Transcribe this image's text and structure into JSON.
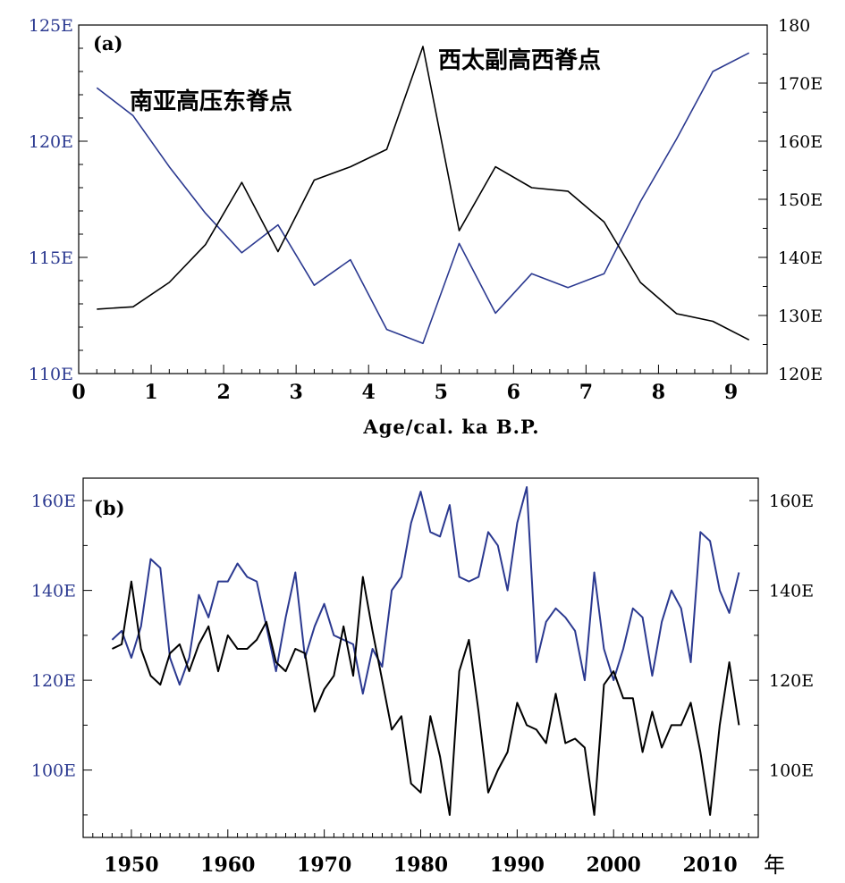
{
  "chart_data": [
    {
      "panel_label": "(a)",
      "type": "line",
      "xlabel": "Age/cal. ka B.P.",
      "xlim": [
        0,
        9.5
      ],
      "x_ticks": [
        "0",
        "1",
        "2",
        "3",
        "4",
        "5",
        "6",
        "7",
        "8",
        "9"
      ],
      "y_left_lim": [
        110,
        125
      ],
      "y_left_ticks": [
        "110E",
        "115E",
        "120E",
        "125E"
      ],
      "y_right_lim": [
        120,
        180
      ],
      "y_right_ticks": [
        "120E",
        "130E",
        "140E",
        "150E",
        "160E",
        "170E",
        "180"
      ],
      "x": [
        0.25,
        0.75,
        1.25,
        1.75,
        2.25,
        2.75,
        3.25,
        3.75,
        4.25,
        4.75,
        5.25,
        5.75,
        6.25,
        6.75,
        7.25,
        7.75,
        8.25,
        8.75,
        9.25
      ],
      "series": [
        {
          "name": "南亚高压东脊点",
          "axis": "left",
          "color": "#2b3990",
          "values": [
            122.3,
            121.1,
            118.9,
            116.9,
            115.2,
            116.4,
            113.8,
            114.9,
            111.9,
            111.3,
            115.6,
            112.6,
            114.3,
            113.7,
            114.3,
            117.4,
            120.1,
            123.0,
            123.8
          ]
        },
        {
          "name": "西太副高西脊点",
          "axis": "right",
          "color": "#000000",
          "values": [
            131.1,
            131.5,
            135.7,
            142.2,
            152.9,
            141.0,
            153.3,
            155.6,
            158.6,
            176.3,
            144.6,
            155.6,
            152.0,
            151.4,
            146.1,
            135.7,
            130.3,
            129.0,
            125.8
          ]
        }
      ]
    },
    {
      "panel_label": "(b)",
      "type": "line",
      "xlabel": "年",
      "xlim": [
        1945,
        2015
      ],
      "x_ticks": [
        "1950",
        "1960",
        "1970",
        "1980",
        "1990",
        "2000",
        "2010"
      ],
      "ylim": [
        85,
        165
      ],
      "y_left_ticks": [
        "100E",
        "120E",
        "140E",
        "160E"
      ],
      "y_right_ticks": [
        "100E",
        "120E",
        "140E",
        "160E"
      ],
      "x": [
        1948,
        1949,
        1950,
        1951,
        1952,
        1953,
        1954,
        1955,
        1956,
        1957,
        1958,
        1959,
        1960,
        1961,
        1962,
        1963,
        1964,
        1965,
        1966,
        1967,
        1968,
        1969,
        1970,
        1971,
        1972,
        1973,
        1974,
        1975,
        1976,
        1977,
        1978,
        1979,
        1980,
        1981,
        1982,
        1983,
        1984,
        1985,
        1986,
        1987,
        1988,
        1989,
        1990,
        1991,
        1992,
        1993,
        1994,
        1995,
        1996,
        1997,
        1998,
        1999,
        2000,
        2001,
        2002,
        2003,
        2004,
        2005,
        2006,
        2007,
        2008,
        2009,
        2010,
        2011,
        2012,
        2013
      ],
      "series": [
        {
          "color": "#2b3990",
          "values": [
            129,
            131,
            125,
            132,
            147,
            145,
            125,
            119,
            125,
            139,
            134,
            142,
            142,
            146,
            143,
            142,
            132,
            122,
            134,
            144,
            125,
            132,
            137,
            130,
            129,
            128,
            117,
            127,
            123,
            140,
            143,
            155,
            162,
            153,
            152,
            159,
            143,
            142,
            143,
            153,
            150,
            140,
            155,
            163,
            124,
            133,
            136,
            134,
            131,
            120,
            144,
            127,
            120,
            127,
            136,
            134,
            121,
            133,
            140,
            136,
            124,
            153,
            151,
            140,
            135,
            144
          ]
        },
        {
          "color": "#000000",
          "values": [
            127,
            128,
            142,
            127,
            121,
            119,
            126,
            128,
            122,
            128,
            132,
            122,
            130,
            127,
            127,
            129,
            133,
            124,
            122,
            127,
            126,
            113,
            118,
            121,
            132,
            121,
            143,
            131,
            120,
            109,
            112,
            97,
            95,
            112,
            103,
            90,
            122,
            129,
            113,
            95,
            100,
            104,
            115,
            110,
            109,
            106,
            117,
            106,
            107,
            105,
            90,
            119,
            122,
            116,
            116,
            104,
            113,
            105,
            110,
            110,
            115,
            104,
            90,
            110,
            124,
            110
          ]
        }
      ]
    }
  ]
}
